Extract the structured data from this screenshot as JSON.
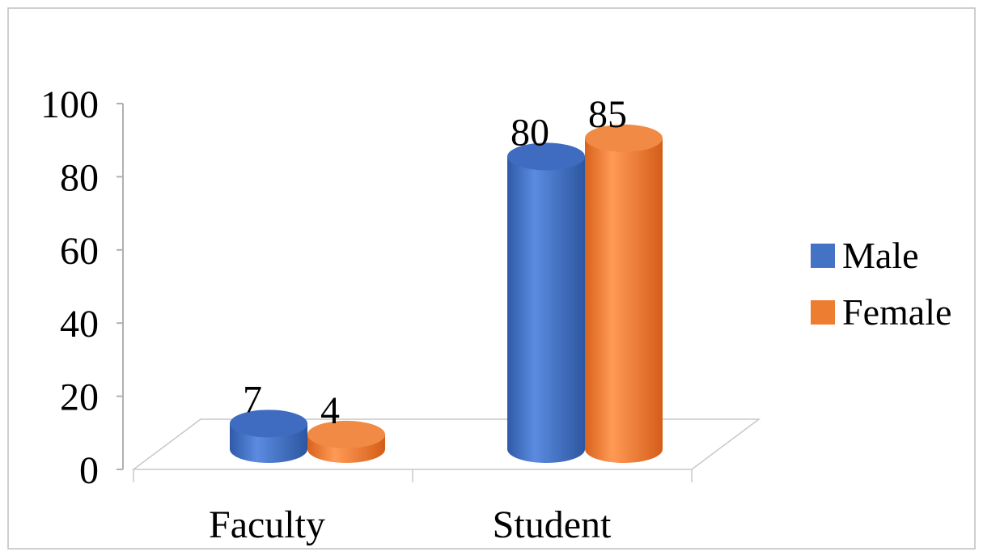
{
  "chart_data": {
    "type": "bar",
    "title": "",
    "xlabel": "",
    "ylabel": "",
    "categories": [
      "Faculty",
      "Student"
    ],
    "series": [
      {
        "name": "Male",
        "values": [
          7,
          80
        ],
        "color": "#4472C4"
      },
      {
        "name": "Female",
        "values": [
          4,
          85
        ],
        "color": "#ED7D31"
      }
    ],
    "ylim": [
      0,
      100
    ],
    "yticks": [
      "0",
      "20",
      "40",
      "60",
      "80",
      "100"
    ],
    "grid": false,
    "legend": "right",
    "style": "3d-cylinder"
  }
}
